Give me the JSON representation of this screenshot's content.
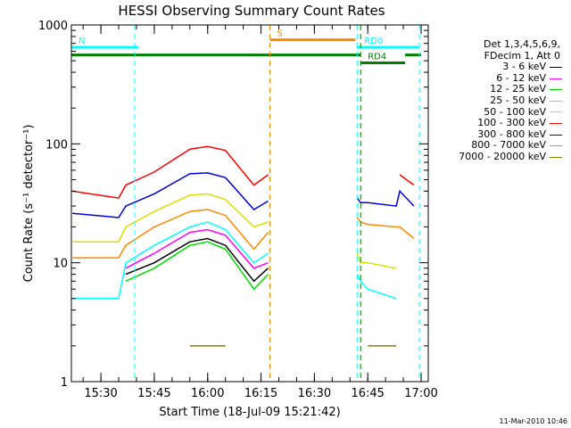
{
  "chart_data": {
    "type": "line",
    "title": "HESSI Observing Summary Count Rates",
    "xlabel": "Start Time (18-Jul-09 15:21:42)",
    "ylabel": "Count Rate (s⁻¹ detector⁻¹)",
    "yscale": "log",
    "ylim": [
      1,
      1000
    ],
    "xlim": [
      "15:21:42",
      "17:02:00"
    ],
    "yticks": [
      "1",
      "10",
      "100",
      "1000"
    ],
    "xticks": [
      "15:30",
      "15:45",
      "16:00",
      "16:15",
      "16:30",
      "16:45",
      "17:00"
    ],
    "legend_header": [
      "Det 1,3,4,5,6,9,",
      "FDecim 1, Att 0"
    ],
    "legend_position": "right",
    "x": [
      "15:22",
      "15:35",
      "15:37",
      "15:45",
      "15:55",
      "16:00",
      "16:05",
      "16:13",
      "16:17",
      "16:18",
      "16:42",
      "16:43",
      "16:45",
      "16:53",
      "16:54",
      "16:58"
    ],
    "series": [
      {
        "name": "3 - 6 keV",
        "color": "#000000",
        "values": [
          null,
          null,
          8,
          10,
          15,
          16,
          14,
          7,
          9,
          null,
          null,
          null,
          null,
          null,
          null,
          null
        ]
      },
      {
        "name": "6 - 12 keV",
        "color": "#ff00ff",
        "values": [
          null,
          null,
          9,
          12,
          18,
          19,
          17,
          9,
          10,
          null,
          null,
          null,
          null,
          null,
          null,
          null
        ]
      },
      {
        "name": "12 - 25 keV",
        "color": "#00dd00",
        "values": [
          null,
          null,
          7,
          9,
          14,
          15,
          13,
          6,
          8,
          null,
          null,
          null,
          null,
          null,
          null,
          null
        ]
      },
      {
        "name": "25 - 50 keV",
        "color": "#00ffff",
        "values": [
          5,
          5,
          10,
          14,
          20,
          22,
          19,
          10,
          12,
          null,
          8,
          7,
          6,
          5,
          null,
          null
        ]
      },
      {
        "name": "50 - 100 keV",
        "color": "#dddd00",
        "values": [
          15,
          15,
          20,
          27,
          37,
          38,
          34,
          20,
          22,
          null,
          12,
          10,
          10,
          9,
          null,
          null
        ]
      },
      {
        "name": "100 - 300 keV",
        "color": "#ff0000",
        "values": [
          40,
          35,
          45,
          58,
          90,
          95,
          88,
          45,
          55,
          null,
          null,
          null,
          null,
          null,
          55,
          45
        ]
      },
      {
        "name": "300 - 800 keV",
        "color": "#0000dd",
        "values": [
          26,
          24,
          30,
          38,
          56,
          57,
          52,
          28,
          33,
          null,
          35,
          32,
          32,
          30,
          40,
          30
        ]
      },
      {
        "name": "800 - 7000 keV",
        "color": "#ff8800",
        "values": [
          11,
          11,
          14,
          20,
          27,
          28,
          25,
          13,
          18,
          null,
          24,
          22,
          21,
          20,
          20,
          16
        ]
      },
      {
        "name": "7000 - 20000 keV",
        "color": "#808000",
        "values": [
          null,
          null,
          null,
          null,
          2,
          2,
          2,
          null,
          null,
          null,
          null,
          null,
          2,
          2,
          null,
          null
        ]
      }
    ],
    "flags": [
      {
        "label": "N",
        "color": "#00ffff",
        "value": 650,
        "segments": [
          [
            "15:21:42",
            "15:39:30"
          ],
          [
            "15:39:30",
            "15:40:30"
          ]
        ],
        "markers": [
          "15:39:30"
        ]
      },
      {
        "label": "S",
        "color": "#ff8800",
        "value": 750,
        "segments": [
          [
            "16:17:30",
            "16:41:30"
          ]
        ],
        "markers": [
          "16:17:30"
        ]
      },
      {
        "label": "RD0",
        "color": "#00ffff",
        "value": 650,
        "segments": [
          [
            "16:42:00",
            "16:59:30"
          ]
        ],
        "markers": [
          "16:42:00",
          "16:59:30"
        ]
      },
      {
        "label": "RD4",
        "color": "#008000",
        "value": 480,
        "segments": [
          [
            "16:43:00",
            "16:55:30"
          ]
        ],
        "markers": [
          "16:43:00"
        ]
      }
    ],
    "baseline_lines": [
      {
        "color": "#008000",
        "value": 560,
        "segments": [
          [
            "15:21:42",
            "16:43:00"
          ],
          [
            "16:55:30",
            "17:00:00"
          ]
        ]
      }
    ]
  },
  "timestamp": "11-Mar-2010 10:46"
}
